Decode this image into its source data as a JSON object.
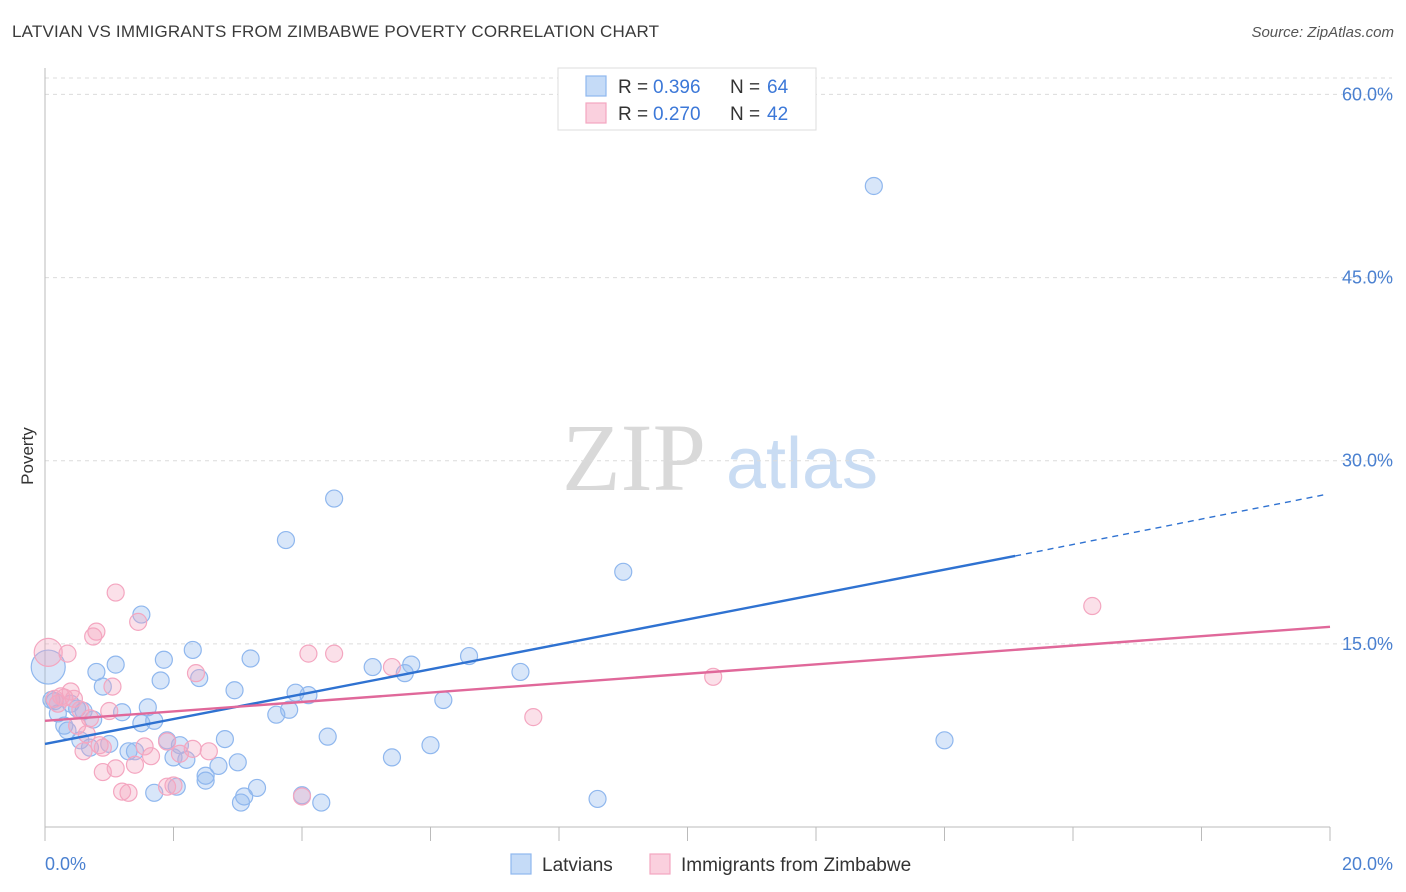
{
  "header": {
    "title": "LATVIAN VS IMMIGRANTS FROM ZIMBABWE POVERTY CORRELATION CHART",
    "source": "Source: ZipAtlas.com"
  },
  "watermark": {
    "zip": "ZIP",
    "atlas": "atlas"
  },
  "legend": [
    {
      "r_label": "R = ",
      "r_value": "0.396",
      "n_label": "N = ",
      "n_value": "64",
      "color": "#8fb7ee"
    },
    {
      "r_label": "R = ",
      "r_value": "0.270",
      "n_label": "N = ",
      "n_value": "42",
      "color": "#f4a6c0"
    }
  ],
  "bottom_legend": [
    "Latvians",
    "Immigrants from Zimbabwe"
  ],
  "chart_data": {
    "type": "scatter",
    "title": "LATVIAN VS IMMIGRANTS FROM ZIMBABWE POVERTY CORRELATION CHART",
    "xlabel": "",
    "ylabel": "Poverty",
    "xlim": [
      0,
      20
    ],
    "ylim": [
      0,
      62
    ],
    "x_tick_labels": [
      "0.0%",
      "20.0%"
    ],
    "y_ticks": [
      15,
      30,
      45,
      60
    ],
    "y_tick_labels": [
      "15.0%",
      "30.0%",
      "45.0%",
      "60.0%"
    ],
    "grid": "horizontal dashed",
    "legend_position": "top-center",
    "series": [
      {
        "name": "Latvians",
        "color": "#8fb7ee",
        "line_color": "#2f72d1",
        "trend": {
          "x0": 0,
          "y0": 6.8,
          "x1": 15.1,
          "y1": 22.2,
          "dash_to_x": 19.9,
          "dash_to_y": 27.2
        },
        "points": [
          [
            0.1,
            10.4
          ],
          [
            0.2,
            9.3
          ],
          [
            0.3,
            8.3
          ],
          [
            0.35,
            7.9
          ],
          [
            0.4,
            10.1
          ],
          [
            0.5,
            9.7
          ],
          [
            0.55,
            7.1
          ],
          [
            0.6,
            9.5
          ],
          [
            0.7,
            6.5
          ],
          [
            0.75,
            8.8
          ],
          [
            0.8,
            12.7
          ],
          [
            0.9,
            11.5
          ],
          [
            1.0,
            6.8
          ],
          [
            1.1,
            13.3
          ],
          [
            1.2,
            9.4
          ],
          [
            1.3,
            6.2
          ],
          [
            1.4,
            6.2
          ],
          [
            1.5,
            8.5
          ],
          [
            1.5,
            17.4
          ],
          [
            1.6,
            9.8
          ],
          [
            1.7,
            8.7
          ],
          [
            1.7,
            2.8
          ],
          [
            1.8,
            12.0
          ],
          [
            1.85,
            13.7
          ],
          [
            1.9,
            7.1
          ],
          [
            2.0,
            5.7
          ],
          [
            2.05,
            3.3
          ],
          [
            2.1,
            6.7
          ],
          [
            2.2,
            5.5
          ],
          [
            2.3,
            14.5
          ],
          [
            2.4,
            12.2
          ],
          [
            2.5,
            4.2
          ],
          [
            2.5,
            3.8
          ],
          [
            2.7,
            5.0
          ],
          [
            2.8,
            7.2
          ],
          [
            2.95,
            11.2
          ],
          [
            3.0,
            5.3
          ],
          [
            3.05,
            2.0
          ],
          [
            3.1,
            2.5
          ],
          [
            3.2,
            13.8
          ],
          [
            3.3,
            3.2
          ],
          [
            3.6,
            9.2
          ],
          [
            3.75,
            23.5
          ],
          [
            3.8,
            9.6
          ],
          [
            3.9,
            11.0
          ],
          [
            4.0,
            2.6
          ],
          [
            4.1,
            10.8
          ],
          [
            4.3,
            2.0
          ],
          [
            4.4,
            7.4
          ],
          [
            4.5,
            26.9
          ],
          [
            5.1,
            13.1
          ],
          [
            5.4,
            5.7
          ],
          [
            5.6,
            12.6
          ],
          [
            5.7,
            13.3
          ],
          [
            6.0,
            6.7
          ],
          [
            6.2,
            10.4
          ],
          [
            6.6,
            14.0
          ],
          [
            7.4,
            12.7
          ],
          [
            8.6,
            2.3
          ],
          [
            9.0,
            20.9
          ],
          [
            12.9,
            52.5
          ],
          [
            14.0,
            7.1
          ],
          [
            0.05,
            13.1
          ],
          [
            0.15,
            10.3
          ]
        ]
      },
      {
        "name": "Immigrants from Zimbabwe",
        "color": "#f4a6c0",
        "line_color": "#e0689a",
        "trend": {
          "x0": 0,
          "y0": 8.7,
          "x1": 20,
          "y1": 16.4
        },
        "points": [
          [
            0.05,
            14.3
          ],
          [
            0.15,
            10.5
          ],
          [
            0.2,
            10.1
          ],
          [
            0.25,
            10.7
          ],
          [
            0.3,
            10.6
          ],
          [
            0.35,
            14.2
          ],
          [
            0.4,
            11.1
          ],
          [
            0.45,
            10.5
          ],
          [
            0.5,
            8.3
          ],
          [
            0.55,
            9.6
          ],
          [
            0.6,
            6.2
          ],
          [
            0.65,
            7.6
          ],
          [
            0.7,
            8.9
          ],
          [
            0.75,
            15.6
          ],
          [
            0.8,
            16.0
          ],
          [
            0.85,
            6.7
          ],
          [
            0.9,
            6.5
          ],
          [
            0.9,
            4.5
          ],
          [
            1.0,
            9.5
          ],
          [
            1.05,
            11.5
          ],
          [
            1.1,
            19.2
          ],
          [
            1.1,
            4.8
          ],
          [
            1.2,
            2.9
          ],
          [
            1.3,
            2.8
          ],
          [
            1.4,
            5.1
          ],
          [
            1.45,
            16.8
          ],
          [
            1.55,
            6.6
          ],
          [
            1.65,
            5.8
          ],
          [
            1.9,
            7.0
          ],
          [
            1.9,
            3.3
          ],
          [
            2.0,
            3.4
          ],
          [
            2.1,
            6.0
          ],
          [
            2.3,
            6.4
          ],
          [
            2.35,
            12.6
          ],
          [
            2.55,
            6.2
          ],
          [
            4.0,
            2.5
          ],
          [
            4.1,
            14.2
          ],
          [
            4.5,
            14.2
          ],
          [
            5.4,
            13.1
          ],
          [
            7.6,
            9.0
          ],
          [
            10.4,
            12.3
          ],
          [
            16.3,
            18.1
          ]
        ]
      }
    ]
  }
}
